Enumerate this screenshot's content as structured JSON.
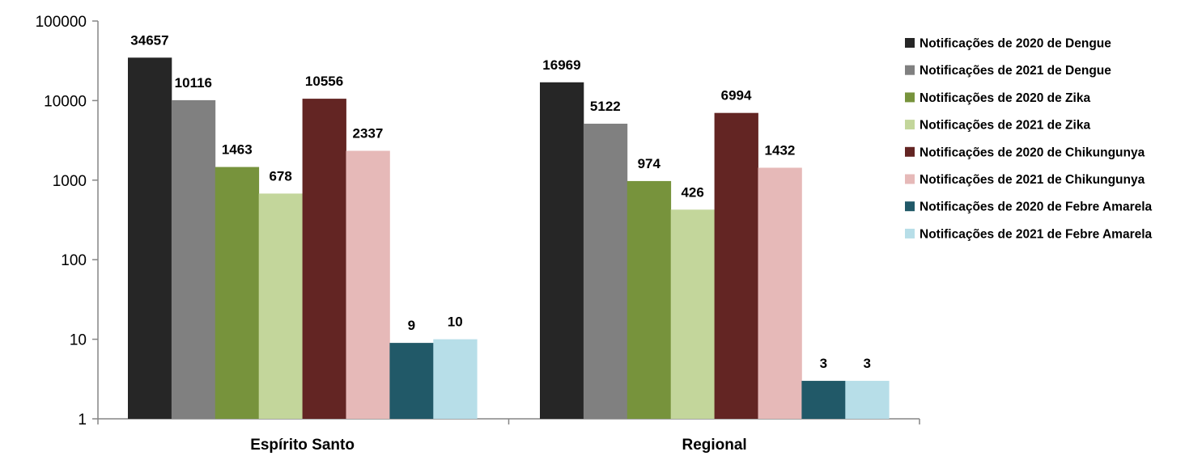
{
  "chart_data": {
    "type": "bar",
    "yscale": "log",
    "ylim": [
      1,
      100000
    ],
    "yticks": [
      "1",
      "10",
      "100",
      "1000",
      "10000",
      "100000"
    ],
    "grid": false,
    "legend_position": "right",
    "categories": [
      "Espírito Santo",
      "Regional"
    ],
    "series": [
      {
        "name": "Notificações de 2020 de Dengue",
        "color": "#262626",
        "values": [
          34657,
          16969
        ],
        "labels": [
          "34657",
          "16969"
        ]
      },
      {
        "name": "Notificações de 2021 de Dengue",
        "color": "#808080",
        "values": [
          10116,
          5122
        ],
        "labels": [
          "10116",
          "5122"
        ]
      },
      {
        "name": "Notificações de 2020 de Zika",
        "color": "#77933c",
        "values": [
          1463,
          974
        ],
        "labels": [
          "1463",
          "974"
        ]
      },
      {
        "name": "Notificações de 2021 de Zika",
        "color": "#c3d69b",
        "values": [
          678,
          426
        ],
        "labels": [
          "678",
          "426"
        ]
      },
      {
        "name": "Notificações de 2020 de Chikungunya",
        "color": "#632523",
        "values": [
          10556,
          6994
        ],
        "labels": [
          "10556",
          "6994"
        ]
      },
      {
        "name": "Notificações de 2021 de Chikungunya",
        "color": "#e6b9b8",
        "values": [
          2337,
          1432
        ],
        "labels": [
          "2337",
          "1432"
        ]
      },
      {
        "name": "Notificações de 2020 de Febre Amarela",
        "color": "#215968",
        "values": [
          9,
          3
        ],
        "labels": [
          "9",
          "3"
        ]
      },
      {
        "name": "Notificações de 2021 de Febre Amarela",
        "color": "#b7dee8",
        "values": [
          10,
          3
        ],
        "labels": [
          "10",
          "3"
        ]
      }
    ]
  }
}
